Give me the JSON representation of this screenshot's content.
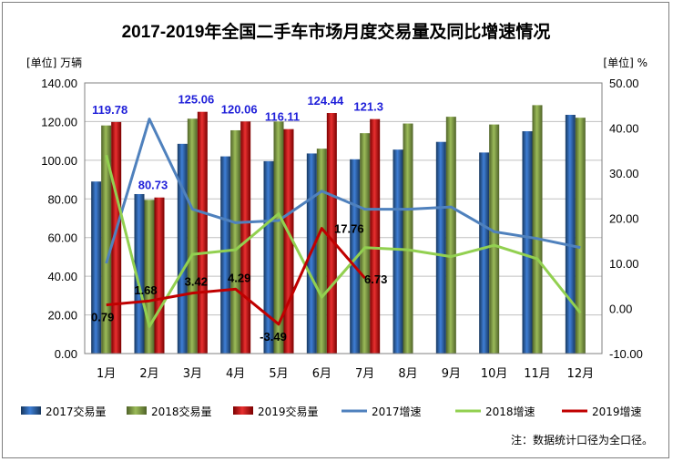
{
  "chart_data": {
    "type": "bar",
    "title": "2017-2019年全国二手车市场月度交易量及同比增速情况",
    "left_unit": "[单位] 万辆",
    "right_unit": "[单位] %",
    "categories": [
      "1月",
      "2月",
      "3月",
      "4月",
      "5月",
      "6月",
      "7月",
      "8月",
      "9月",
      "10月",
      "11月",
      "12月"
    ],
    "ylim_left": [
      0,
      140
    ],
    "ylim_right": [
      -10,
      50
    ],
    "left_ticks": [
      "0.00",
      "20.00",
      "40.00",
      "60.00",
      "80.00",
      "100.00",
      "120.00",
      "140.00"
    ],
    "right_ticks": [
      "-10.00",
      "0.00",
      "10.00",
      "20.00",
      "30.00",
      "40.00",
      "50.00"
    ],
    "bar_series": [
      {
        "name": "2017交易量",
        "color": "#2e6fc4",
        "values": [
          89,
          82.5,
          108.5,
          102,
          99.5,
          103.5,
          100.5,
          105.5,
          109.5,
          104,
          115,
          123.5
        ]
      },
      {
        "name": "2018交易量",
        "color": "#7ea83a",
        "values": [
          118,
          79.5,
          121.5,
          115.5,
          120,
          106,
          114,
          119,
          122.5,
          118.5,
          128.5,
          122
        ]
      },
      {
        "name": "2019交易量",
        "color": "#d81e1e",
        "values": [
          119.78,
          80.73,
          125.06,
          120.06,
          116.11,
          124.44,
          121.3,
          null,
          null,
          null,
          null,
          null
        ]
      }
    ],
    "line_series": [
      {
        "name": "2017增速",
        "color": "#4f81bd",
        "values": [
          10,
          42,
          22,
          19,
          19.5,
          26,
          22,
          22,
          22.5,
          17,
          15.5,
          13.5
        ]
      },
      {
        "name": "2018增速",
        "color": "#92d050",
        "values": [
          34,
          -4,
          12,
          13,
          21,
          2.5,
          13.5,
          13,
          11.5,
          14,
          11,
          -1
        ]
      },
      {
        "name": "2019增速",
        "color": "#c00000",
        "values": [
          0.79,
          1.68,
          3.42,
          4.29,
          -3.49,
          17.76,
          6.73,
          null,
          null,
          null,
          null,
          null
        ]
      }
    ],
    "bar_labels": [
      "119.78",
      "80.73",
      "125.06",
      "120.06",
      "116.11",
      "124.44",
      "121.3"
    ],
    "line_labels": [
      "0.79",
      "1.68",
      "3.42",
      "4.29",
      "-3.49",
      "17.76",
      "6.73"
    ],
    "grid": true,
    "legend_position": "bottom"
  },
  "note": "注：数据统计口径为全口径。"
}
